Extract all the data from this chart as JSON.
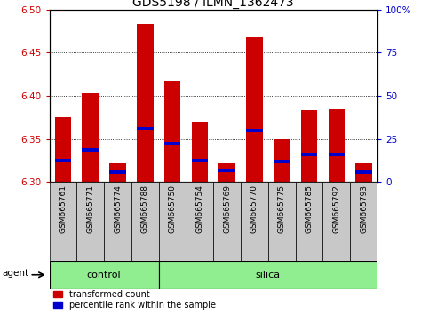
{
  "title": "GDS5198 / ILMN_1362473",
  "samples": [
    "GSM665761",
    "GSM665771",
    "GSM665774",
    "GSM665788",
    "GSM665750",
    "GSM665754",
    "GSM665769",
    "GSM665770",
    "GSM665775",
    "GSM665785",
    "GSM665792",
    "GSM665793"
  ],
  "groups": [
    "control",
    "control",
    "control",
    "control",
    "silica",
    "silica",
    "silica",
    "silica",
    "silica",
    "silica",
    "silica",
    "silica"
  ],
  "red_values": [
    6.375,
    6.403,
    6.322,
    6.483,
    6.417,
    6.37,
    6.322,
    6.468,
    6.35,
    6.384,
    6.385,
    6.322
  ],
  "blue_values": [
    6.325,
    6.337,
    6.312,
    6.362,
    6.345,
    6.325,
    6.314,
    6.36,
    6.324,
    6.332,
    6.332,
    6.312
  ],
  "ylim_left": [
    6.3,
    6.5
  ],
  "yticks_left": [
    6.3,
    6.35,
    6.4,
    6.45,
    6.5
  ],
  "yticks_right": [
    0,
    25,
    50,
    75,
    100
  ],
  "ylim_right": [
    0,
    100
  ],
  "bar_bottom": 6.3,
  "bar_width": 0.6,
  "red_color": "#cc0000",
  "blue_color": "#0000cc",
  "group_green": "#90ee90",
  "bg_gray": "#c8c8c8",
  "legend_red": "transformed count",
  "legend_blue": "percentile rank within the sample",
  "agent_label": "agent",
  "group_label_control": "control",
  "group_label_silica": "silica",
  "title_fontsize": 10,
  "tick_fontsize": 7.5,
  "label_fontsize": 6.5,
  "axis_color_left": "#cc0000",
  "axis_color_right": "#0000cc",
  "n_control": 4,
  "n_silica": 8
}
